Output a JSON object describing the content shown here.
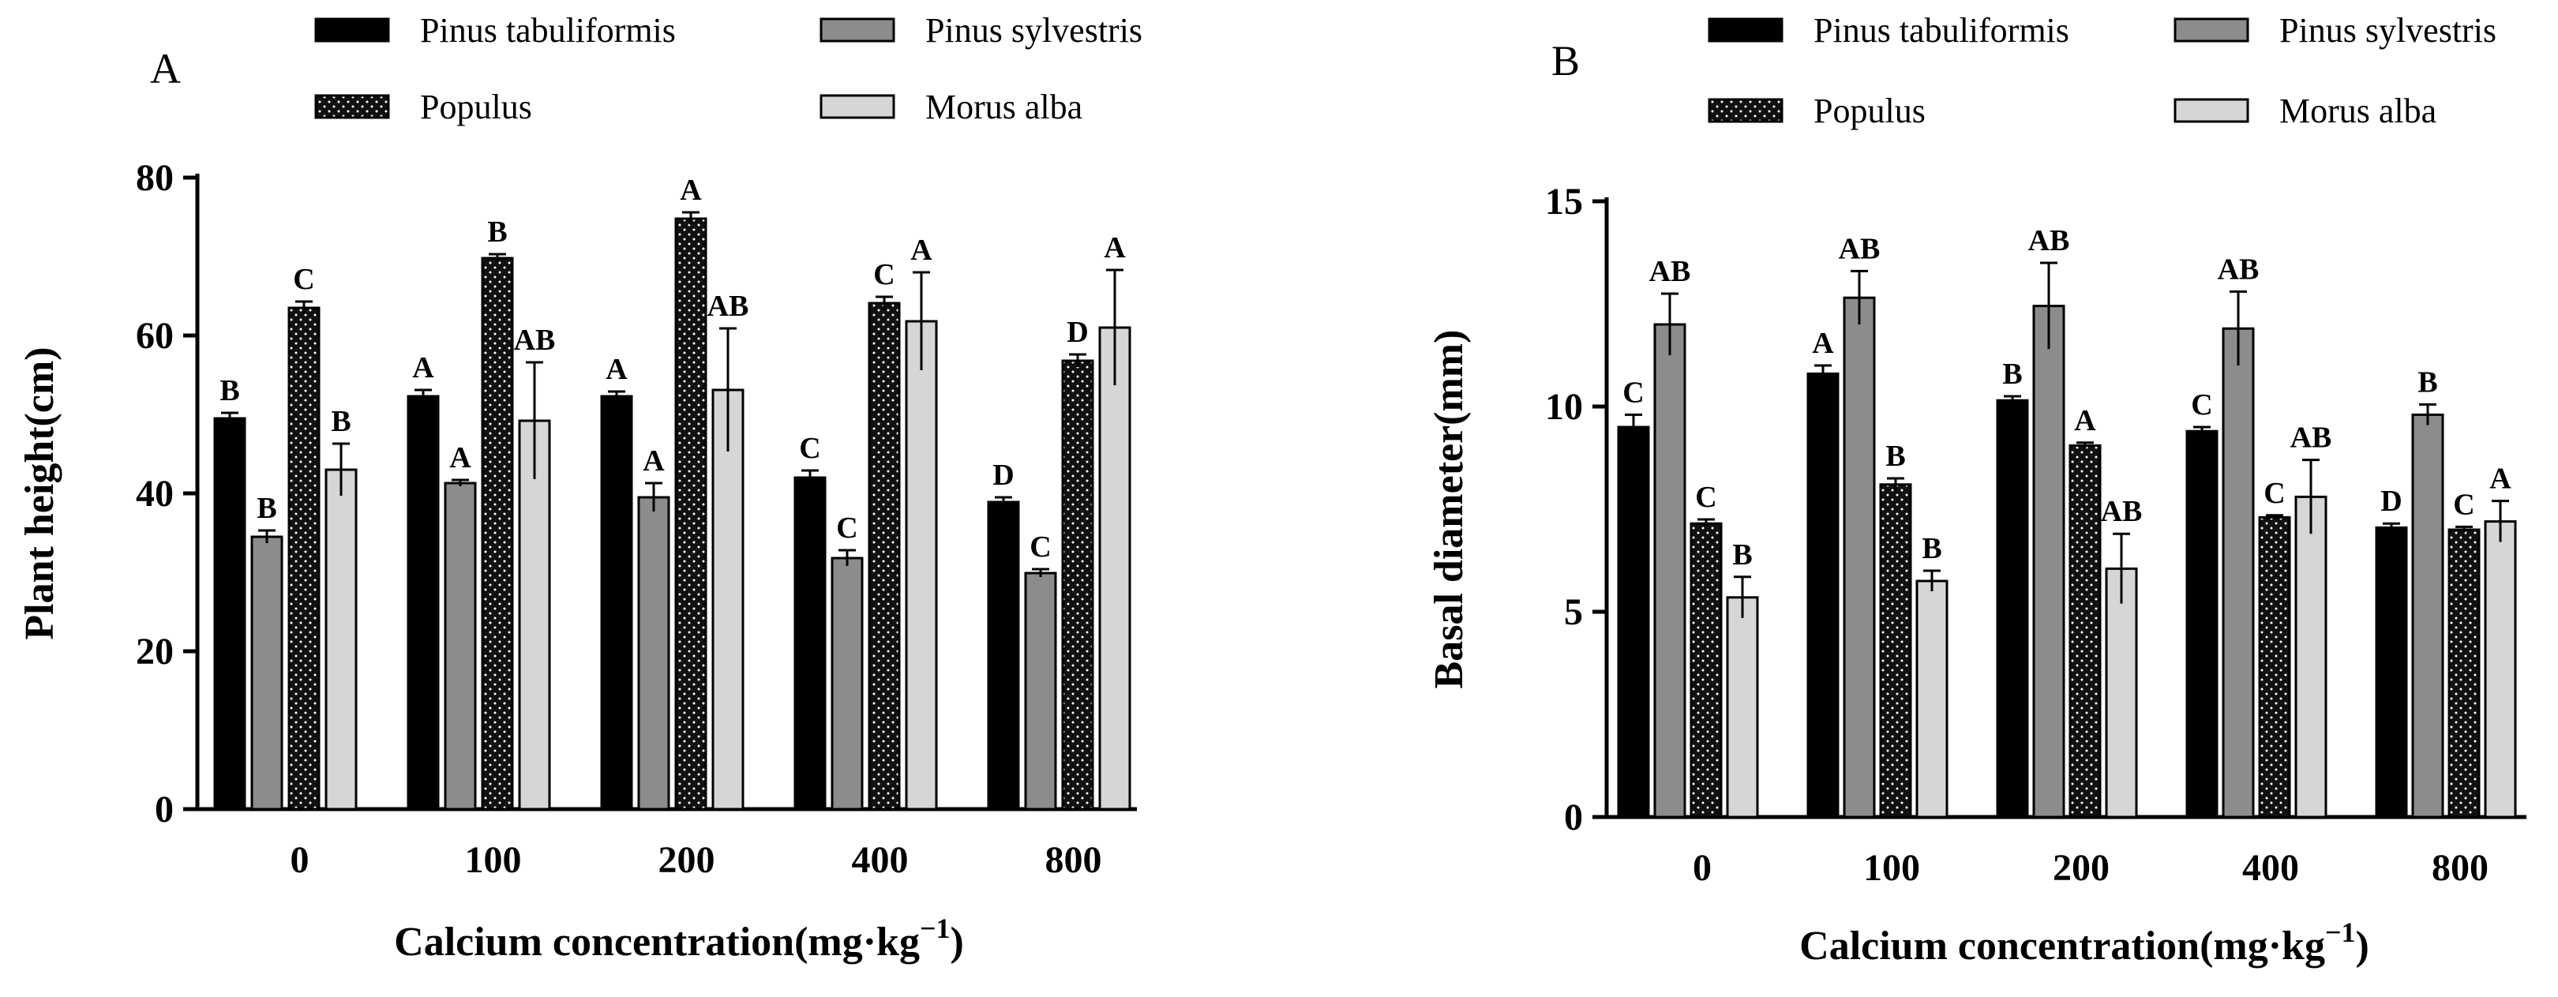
{
  "colors": {
    "pinus_tabuliformis": "#000000",
    "pinus_sylvestris": "#8c8c8c",
    "populus": "#111111",
    "morus_alba": "#d6d6d6"
  },
  "chart_data": [
    {
      "type": "bar",
      "panel_label": "A",
      "title": "",
      "xlabel": "Calcium concentration(mg·kg",
      "xlabel_sup": "−1",
      "xlabel_close": ")",
      "ylabel": "Plant height(cm)",
      "ylim": [
        0,
        80
      ],
      "yticks": [
        0,
        20,
        40,
        60,
        80
      ],
      "grid": false,
      "legend_position": "top",
      "categories": [
        "0",
        "100",
        "200",
        "400",
        "800"
      ],
      "series": [
        {
          "name": "Pinus tabuliformis",
          "values": [
            49.5,
            52.3,
            52.3,
            42.0,
            38.9
          ],
          "errors": [
            0.7,
            0.8,
            0.6,
            0.9,
            0.6
          ],
          "labels": [
            "B",
            "A",
            "A",
            "C",
            "D"
          ]
        },
        {
          "name": "Pinus sylvestris",
          "values": [
            34.5,
            41.3,
            39.5,
            31.8,
            29.9
          ],
          "errors": [
            0.8,
            0.4,
            1.8,
            1.0,
            0.5
          ],
          "labels": [
            "B",
            "A",
            "A",
            "C",
            "C"
          ]
        },
        {
          "name": "Populus",
          "values": [
            63.5,
            69.8,
            74.8,
            64.1,
            56.8
          ],
          "errors": [
            0.8,
            0.5,
            0.8,
            0.8,
            0.8
          ],
          "labels": [
            "C",
            "B",
            "A",
            "C",
            "D"
          ]
        },
        {
          "name": "Morus alba",
          "values": [
            43.0,
            49.2,
            53.1,
            61.8,
            61.0
          ],
          "errors": [
            3.3,
            7.4,
            7.8,
            6.2,
            7.3
          ],
          "labels": [
            "B",
            "AB",
            "AB",
            "A",
            "A"
          ]
        }
      ]
    },
    {
      "type": "bar",
      "panel_label": "B",
      "title": "",
      "xlabel": "Calcium concentration(mg·kg",
      "xlabel_sup": "−1",
      "xlabel_close": ")",
      "ylabel": "Basal diameter(mm)",
      "ylim": [
        0,
        15
      ],
      "yticks": [
        0,
        5,
        10,
        15
      ],
      "grid": false,
      "legend_position": "top",
      "categories": [
        "0",
        "100",
        "200",
        "400",
        "800"
      ],
      "series": [
        {
          "name": "Pinus tabuliformis",
          "values": [
            9.5,
            10.8,
            10.15,
            9.4,
            7.05
          ],
          "errors": [
            0.3,
            0.2,
            0.1,
            0.1,
            0.1
          ],
          "labels": [
            "C",
            "A",
            "B",
            "C",
            "D"
          ]
        },
        {
          "name": "Pinus sylvestris",
          "values": [
            12.0,
            12.65,
            12.45,
            11.9,
            9.8
          ],
          "errors": [
            0.75,
            0.65,
            1.05,
            0.9,
            0.25
          ],
          "labels": [
            "AB",
            "AB",
            "AB",
            "AB",
            "B"
          ]
        },
        {
          "name": "Populus",
          "values": [
            7.15,
            8.1,
            9.05,
            7.3,
            7.0
          ],
          "errors": [
            0.1,
            0.15,
            0.07,
            0.05,
            0.07
          ],
          "labels": [
            "C",
            "B",
            "A",
            "C",
            "C"
          ]
        },
        {
          "name": "Morus alba",
          "values": [
            5.35,
            5.75,
            6.05,
            7.8,
            7.2
          ],
          "errors": [
            0.5,
            0.25,
            0.85,
            0.9,
            0.5
          ],
          "labels": [
            "B",
            "B",
            "AB",
            "AB",
            "A"
          ]
        }
      ]
    }
  ]
}
